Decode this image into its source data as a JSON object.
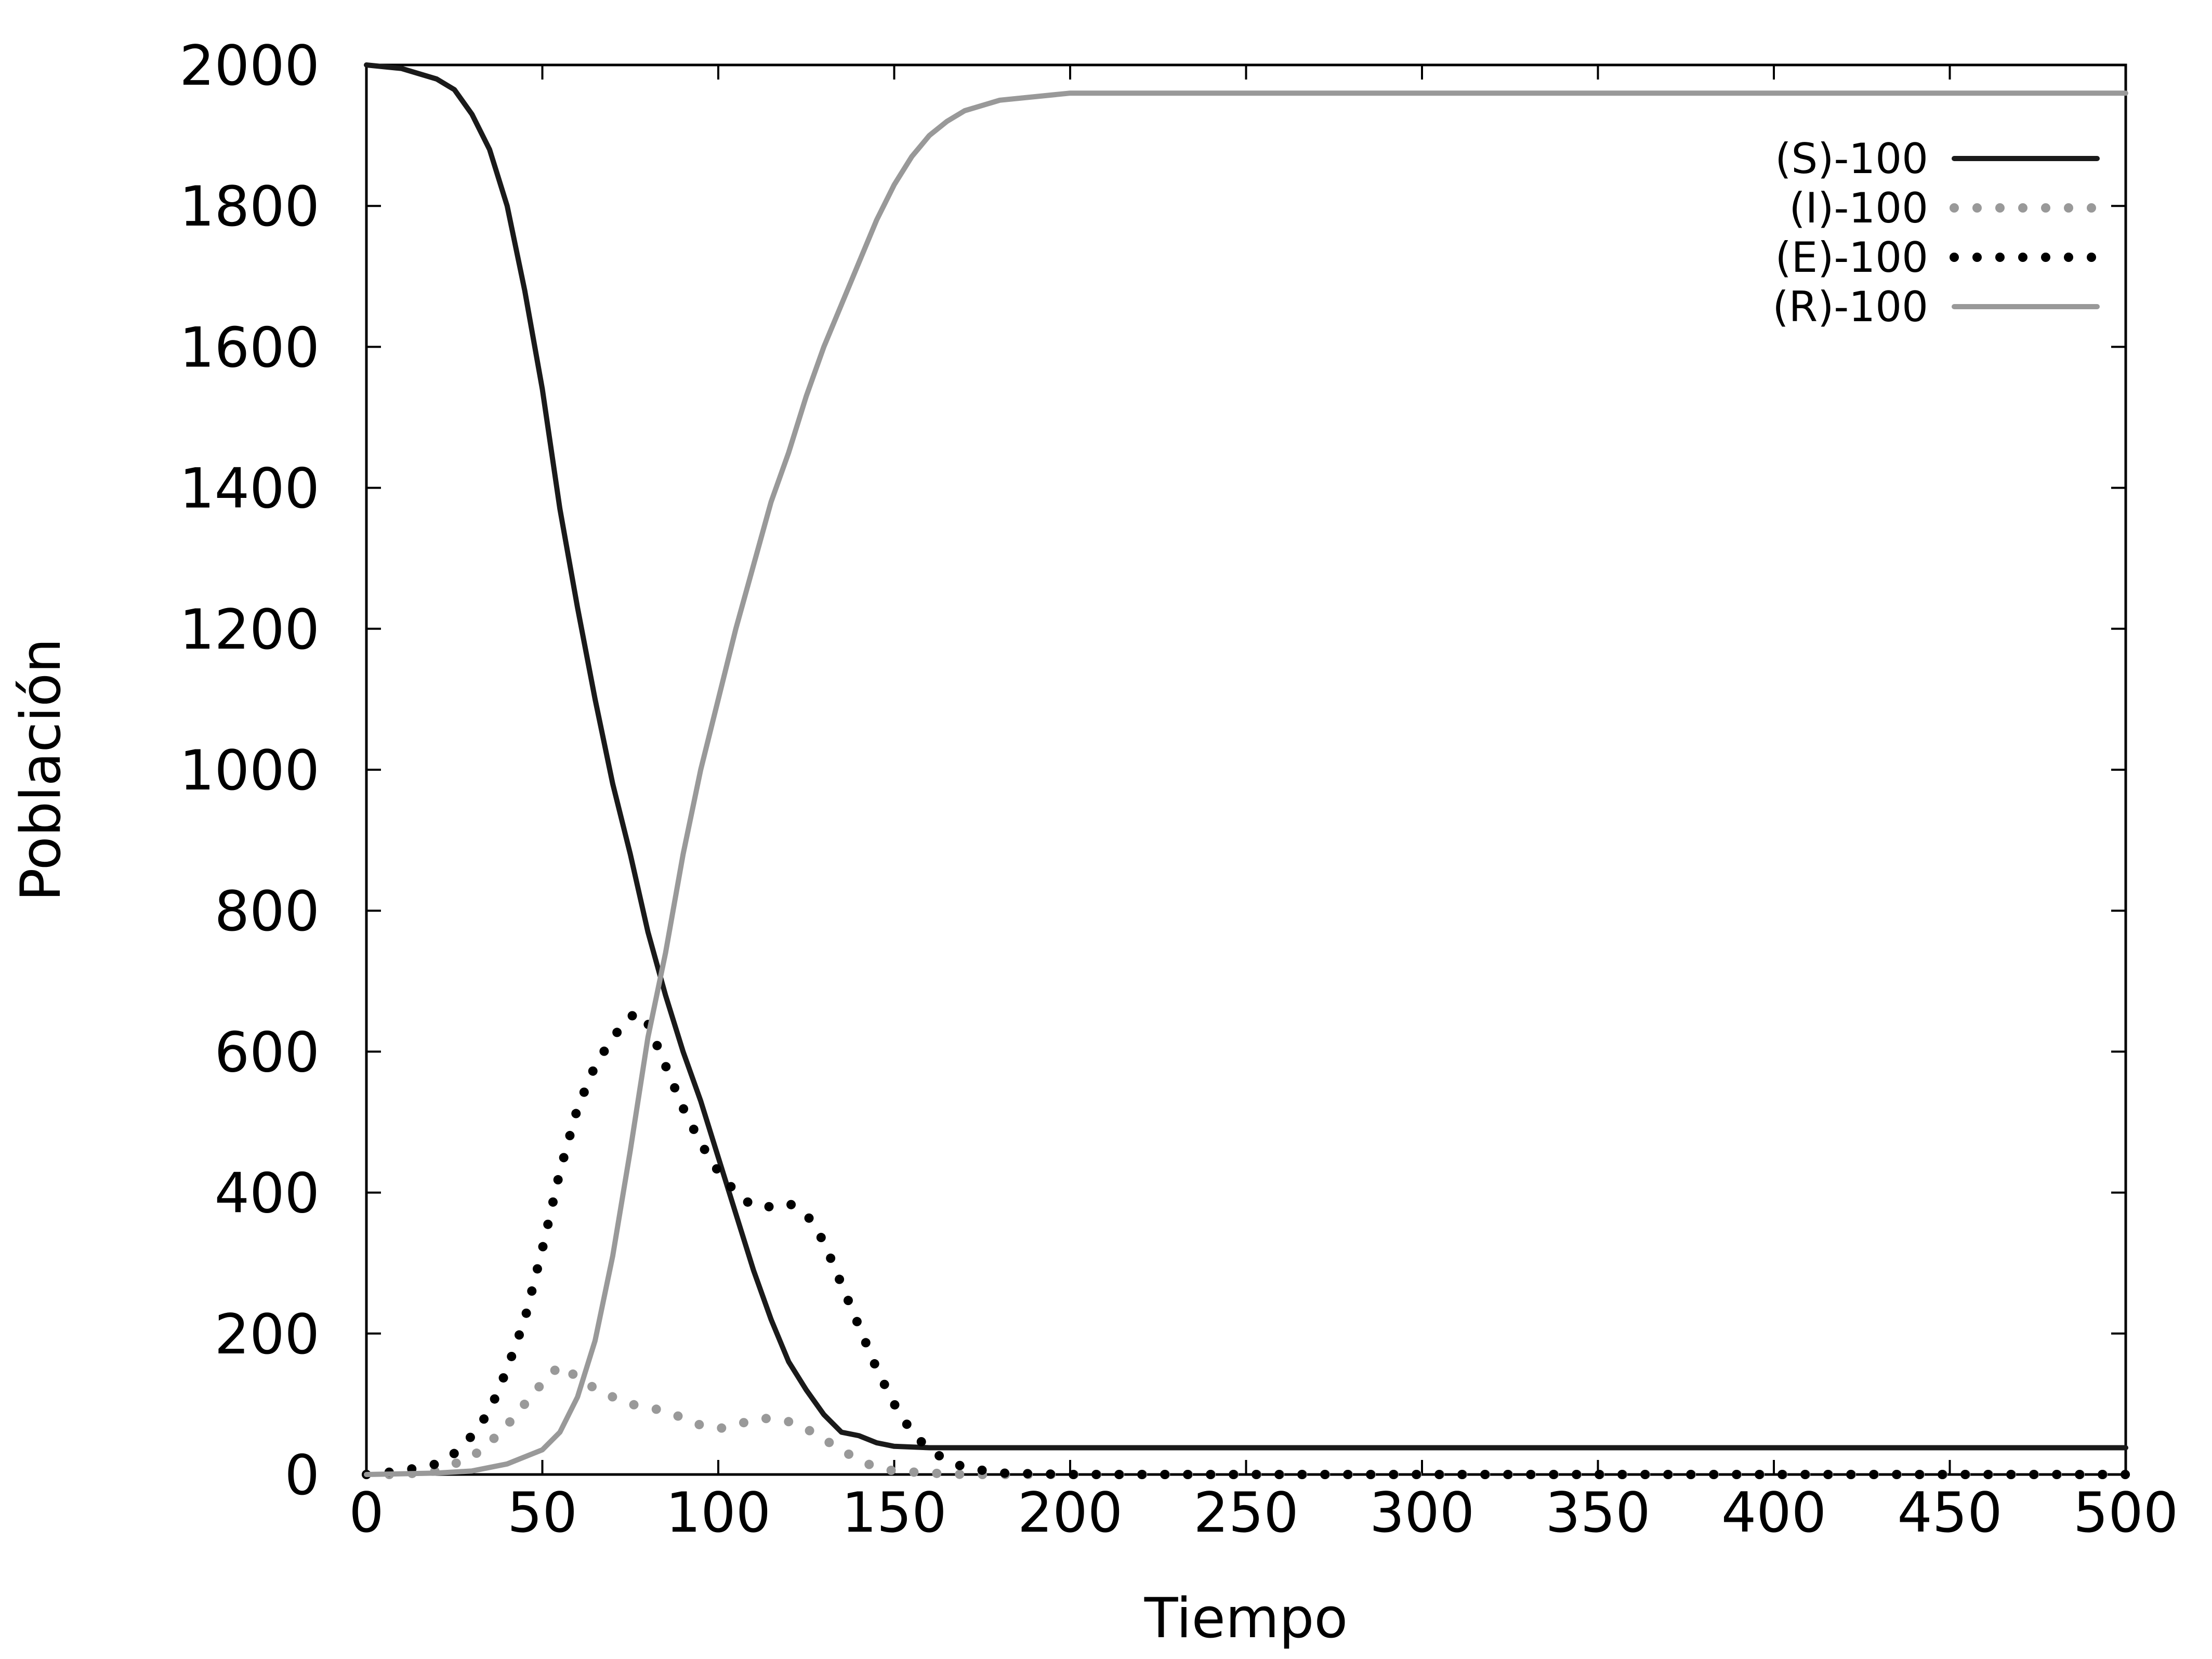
{
  "chart_data": {
    "type": "line",
    "title": "",
    "xlabel": "Tiempo",
    "ylabel": "Población",
    "xlim": [
      0,
      500
    ],
    "ylim": [
      0,
      2000
    ],
    "xticks": [
      0,
      50,
      100,
      150,
      200,
      250,
      300,
      350,
      400,
      450,
      500
    ],
    "yticks": [
      0,
      200,
      400,
      600,
      800,
      1000,
      1200,
      1400,
      1600,
      1800,
      2000
    ],
    "grid": false,
    "legend_position": "top-right",
    "series": [
      {
        "name": "(S)-100",
        "color": "#1a1a1a",
        "style": "solid",
        "x": [
          0,
          10,
          20,
          25,
          30,
          35,
          40,
          45,
          50,
          55,
          60,
          65,
          70,
          75,
          80,
          85,
          90,
          95,
          100,
          105,
          110,
          115,
          120,
          125,
          130,
          135,
          140,
          145,
          150,
          160,
          170,
          200,
          300,
          400,
          500
        ],
        "y": [
          2000,
          1995,
          1980,
          1965,
          1930,
          1880,
          1800,
          1680,
          1540,
          1370,
          1230,
          1100,
          980,
          880,
          770,
          680,
          600,
          530,
          450,
          370,
          290,
          220,
          160,
          120,
          85,
          60,
          55,
          45,
          40,
          38,
          38,
          38,
          38,
          38,
          38
        ]
      },
      {
        "name": "(I)-100",
        "color": "#999999",
        "style": "dotted",
        "x": [
          0,
          10,
          20,
          30,
          35,
          40,
          45,
          50,
          55,
          58,
          62,
          66,
          70,
          75,
          80,
          85,
          90,
          95,
          100,
          105,
          110,
          115,
          120,
          125,
          130,
          135,
          140,
          145,
          150,
          160,
          170,
          200,
          300,
          400,
          500
        ],
        "y": [
          0,
          0,
          5,
          25,
          45,
          70,
          100,
          130,
          155,
          145,
          130,
          120,
          110,
          100,
          95,
          90,
          80,
          70,
          65,
          70,
          78,
          80,
          75,
          65,
          50,
          35,
          20,
          10,
          5,
          2,
          0,
          0,
          0,
          0,
          0
        ]
      },
      {
        "name": "(E)-100",
        "color": "#000000",
        "style": "dotted",
        "x": [
          0,
          10,
          20,
          25,
          30,
          35,
          40,
          45,
          50,
          55,
          60,
          65,
          70,
          75,
          78,
          80,
          85,
          90,
          95,
          100,
          105,
          110,
          115,
          120,
          125,
          130,
          135,
          140,
          145,
          150,
          155,
          160,
          165,
          170,
          180,
          200,
          300,
          400,
          500
        ],
        "y": [
          0,
          5,
          15,
          30,
          55,
          90,
          150,
          220,
          320,
          430,
          520,
          580,
          620,
          650,
          655,
          640,
          580,
          520,
          470,
          430,
          400,
          380,
          380,
          385,
          370,
          330,
          270,
          210,
          150,
          100,
          60,
          35,
          20,
          10,
          2,
          0,
          0,
          0,
          0
        ]
      },
      {
        "name": "(R)-100",
        "color": "#999999",
        "style": "solid",
        "x": [
          0,
          20,
          30,
          40,
          50,
          55,
          60,
          65,
          70,
          75,
          80,
          85,
          90,
          95,
          100,
          105,
          110,
          115,
          120,
          125,
          130,
          135,
          140,
          145,
          150,
          155,
          160,
          165,
          170,
          180,
          190,
          200,
          300,
          400,
          500
        ],
        "y": [
          0,
          2,
          5,
          15,
          35,
          60,
          110,
          190,
          310,
          460,
          620,
          740,
          880,
          1000,
          1100,
          1200,
          1290,
          1380,
          1450,
          1530,
          1600,
          1660,
          1720,
          1780,
          1830,
          1870,
          1900,
          1920,
          1935,
          1950,
          1955,
          1960,
          1960,
          1960,
          1960
        ]
      }
    ]
  }
}
